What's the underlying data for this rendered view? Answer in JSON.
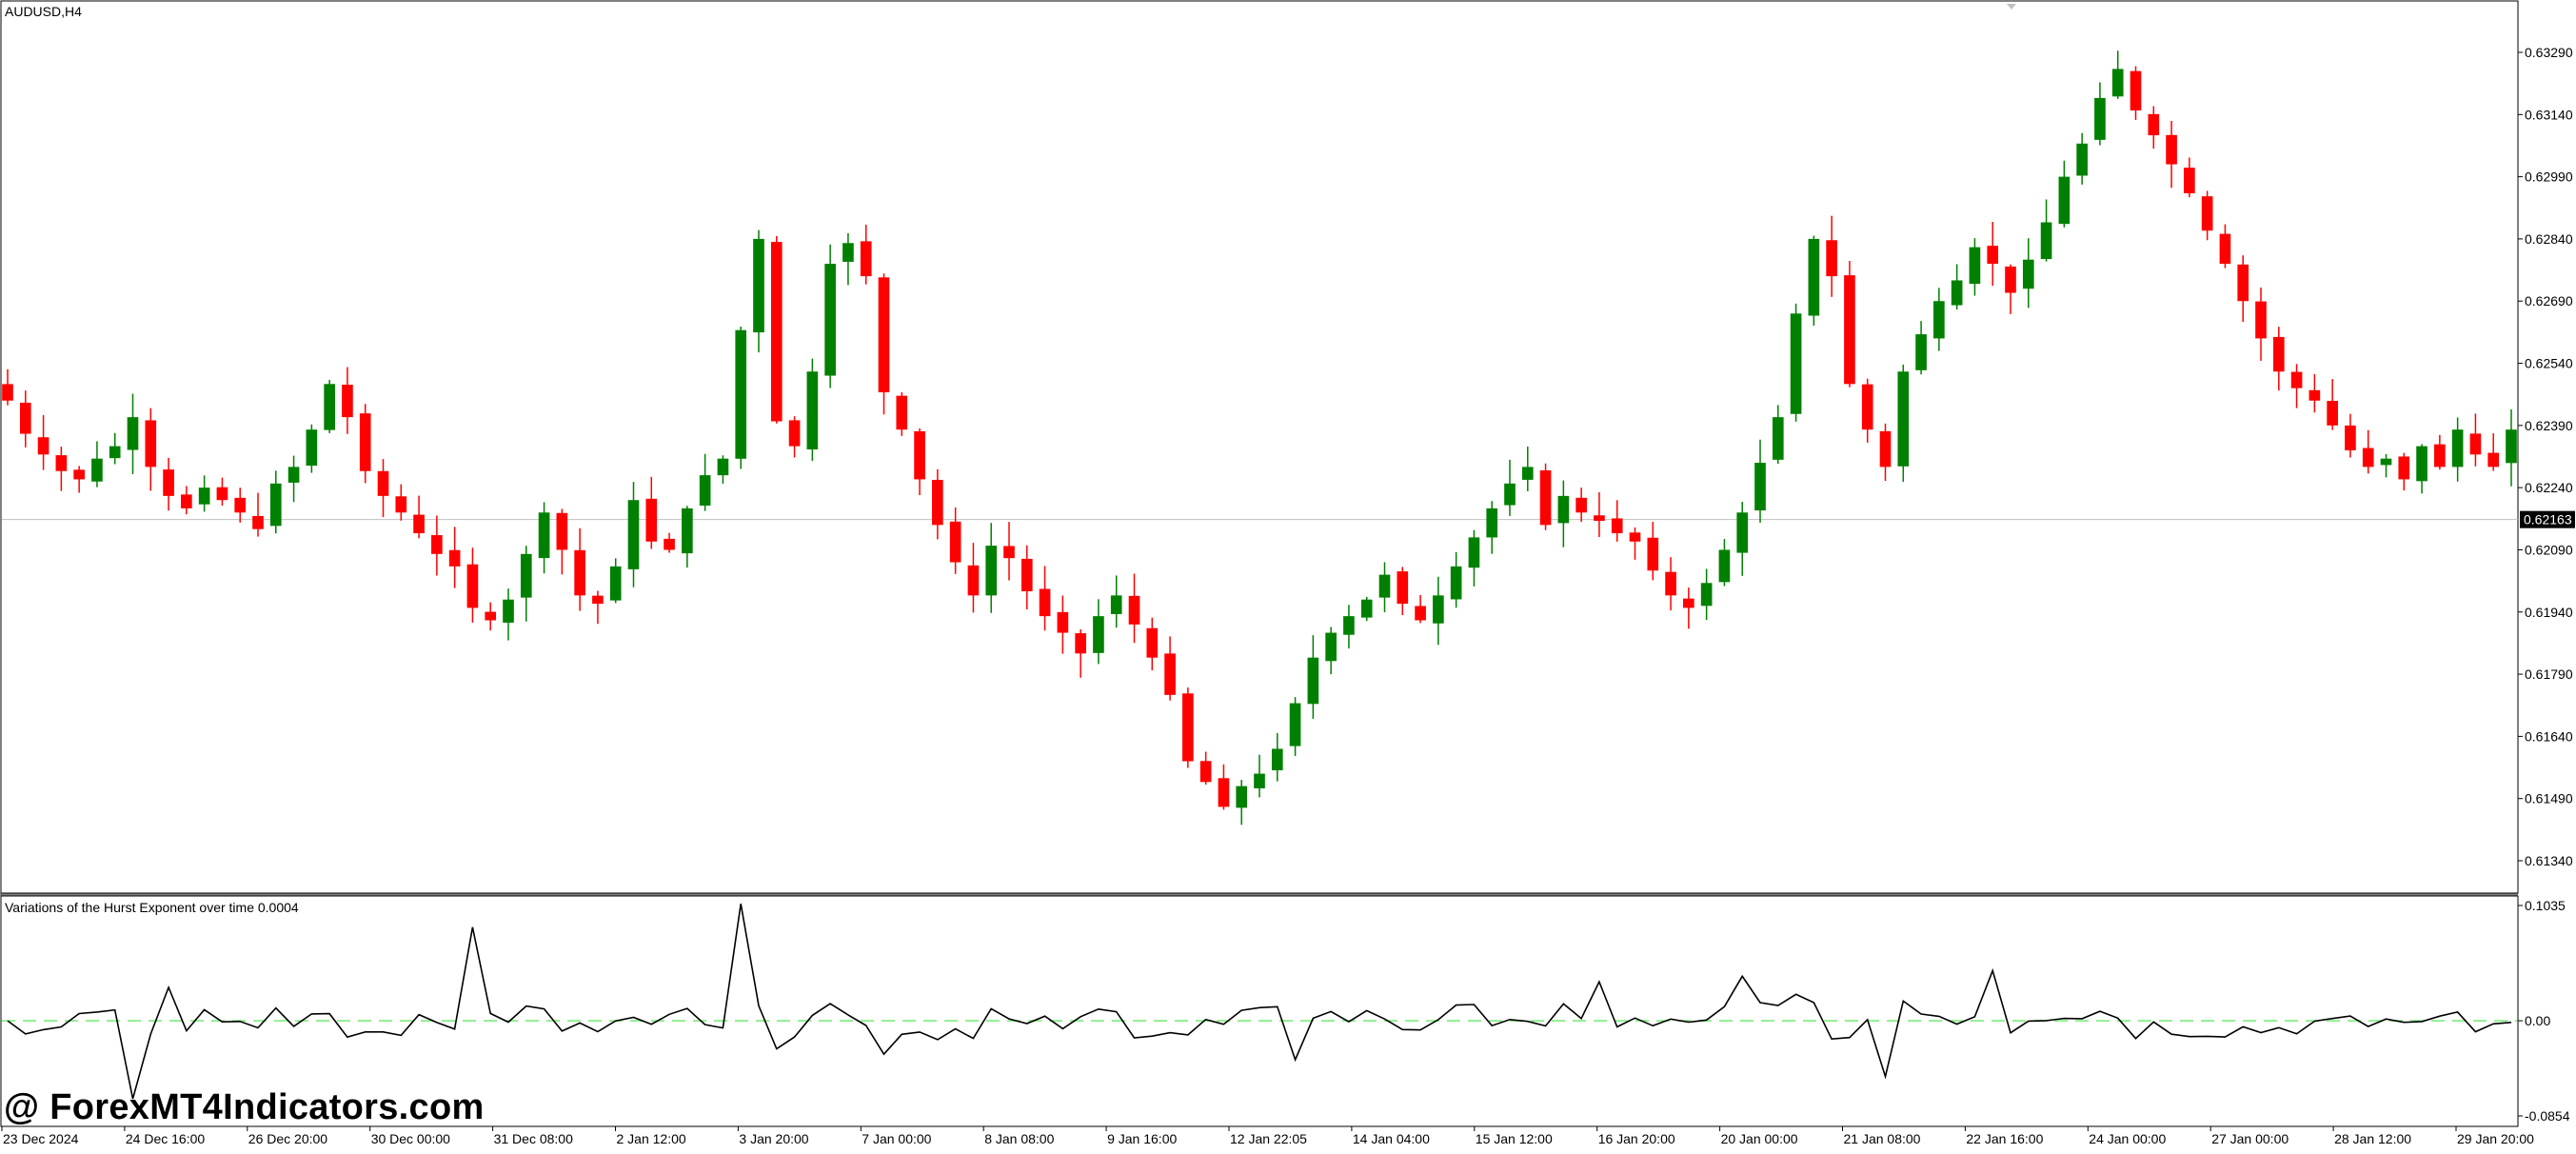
{
  "symbol_label": "AUDUSD,H4",
  "indicator_label": "Variations of the Hurst Exponent over time 0.0004",
  "watermark": "@ ForexMT4Indicators.com",
  "colors": {
    "bull": "#008000",
    "bear": "#ff0000",
    "background": "#ffffff",
    "axis": "#000000",
    "current_price_line": "#c0c0c0",
    "indicator_line": "#000000",
    "zero_line": "#90ee90"
  },
  "chart_data": [
    {
      "type": "candlestick",
      "title": "AUDUSD,H4",
      "y_ticks": [
        "0.63290",
        "0.63140",
        "0.62990",
        "0.62840",
        "0.62690",
        "0.62540",
        "0.62390",
        "0.62240",
        "0.62090",
        "0.61940",
        "0.61790",
        "0.61640",
        "0.61490",
        "0.61340"
      ],
      "ylim": [
        0.6129,
        0.6337
      ],
      "current_price": 0.62163,
      "current_price_label": "0.62163",
      "x_ticks": [
        "23 Dec 2024",
        "24 Dec 16:00",
        "26 Dec 20:00",
        "30 Dec 00:00",
        "31 Dec 08:00",
        "2 Jan 12:00",
        "3 Jan 20:00",
        "7 Jan 00:00",
        "8 Jan 08:00",
        "9 Jan 16:00",
        "12 Jan 22:05",
        "14 Jan 04:00",
        "15 Jan 12:00",
        "16 Jan 20:00",
        "20 Jan 00:00",
        "21 Jan 08:00",
        "22 Jan 16:00",
        "24 Jan 00:00",
        "27 Jan 00:00",
        "28 Jan 12:00",
        "29 Jan 20:00"
      ],
      "close_path": [
        0.6245,
        0.6237,
        0.6232,
        0.6228,
        0.6226,
        0.6231,
        0.6234,
        0.6241,
        0.6229,
        0.6222,
        0.6219,
        0.6224,
        0.6221,
        0.6218,
        0.6214,
        0.6225,
        0.6229,
        0.6238,
        0.6249,
        0.6241,
        0.6228,
        0.6222,
        0.6218,
        0.6213,
        0.6208,
        0.6205,
        0.6195,
        0.6192,
        0.6197,
        0.6208,
        0.6218,
        0.6209,
        0.6198,
        0.6196,
        0.6205,
        0.6221,
        0.6211,
        0.6209,
        0.6219,
        0.6227,
        0.6231,
        0.6262,
        0.6284,
        0.624,
        0.6234,
        0.6252,
        0.6278,
        0.6283,
        0.6275,
        0.6247,
        0.6238,
        0.6226,
        0.6215,
        0.6206,
        0.6198,
        0.621,
        0.6207,
        0.6199,
        0.6193,
        0.6189,
        0.6184,
        0.6193,
        0.6198,
        0.6191,
        0.6183,
        0.6174,
        0.6158,
        0.6153,
        0.6147,
        0.6152,
        0.6155,
        0.6161,
        0.6172,
        0.6183,
        0.6189,
        0.6193,
        0.6197,
        0.6203,
        0.6196,
        0.6192,
        0.6198,
        0.6205,
        0.6212,
        0.6219,
        0.6225,
        0.6229,
        0.6215,
        0.6222,
        0.6218,
        0.6216,
        0.6213,
        0.6211,
        0.6204,
        0.6198,
        0.6195,
        0.6201,
        0.6209,
        0.6218,
        0.623,
        0.6241,
        0.6266,
        0.6284,
        0.6275,
        0.6249,
        0.6238,
        0.6229,
        0.6252,
        0.6261,
        0.6269,
        0.6274,
        0.6282,
        0.6278,
        0.6271,
        0.6279,
        0.6288,
        0.6299,
        0.6307,
        0.6318,
        0.6325,
        0.6315,
        0.6309,
        0.6302,
        0.6295,
        0.6286,
        0.6278,
        0.6269,
        0.626,
        0.6252,
        0.6248,
        0.6245,
        0.6239,
        0.6233,
        0.6229,
        0.6231,
        0.6226,
        0.6234,
        0.6229,
        0.6238,
        0.6232,
        0.6229,
        0.6238
      ],
      "indicator": {
        "name": "Variations of the Hurst Exponent over time",
        "value_label": "0.0004",
        "y_ticks": [
          "0.1035",
          "0.00",
          "-0.0854"
        ],
        "ylim": [
          -0.0854,
          0.1035
        ],
        "zero_line": 0.0
      }
    }
  ]
}
